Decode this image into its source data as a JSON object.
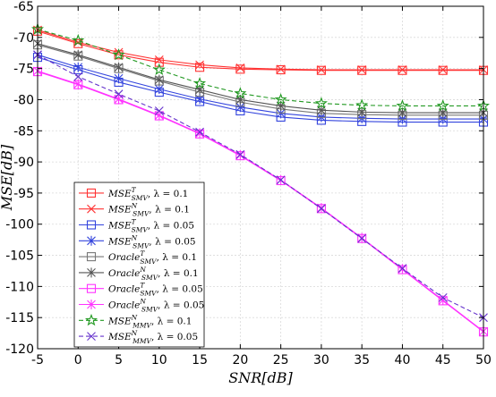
{
  "chart_data": {
    "type": "line",
    "title": "",
    "xlabel": "SNR[dB]",
    "ylabel": "MSE[dB]",
    "xlim": [
      -5,
      50
    ],
    "ylim": [
      -120,
      -65
    ],
    "xticks": [
      -5,
      0,
      5,
      10,
      15,
      20,
      25,
      30,
      35,
      40,
      45,
      50
    ],
    "yticks": [
      -65,
      -70,
      -75,
      -80,
      -85,
      -90,
      -95,
      -100,
      -105,
      -110,
      -115,
      -120
    ],
    "grid": true,
    "legend_position": "bottom-left",
    "x": [
      -5,
      0,
      5,
      10,
      15,
      20,
      25,
      30,
      35,
      40,
      45,
      50
    ],
    "series": [
      {
        "name": "MSE^T_SMV, λ = 0.1",
        "color": "#ff3333",
        "marker": "square",
        "dash": "solid",
        "values": [
          -69.0,
          -71.0,
          -72.8,
          -74.0,
          -74.8,
          -75.1,
          -75.2,
          -75.3,
          -75.3,
          -75.3,
          -75.3,
          -75.3
        ]
      },
      {
        "name": "MSE^N_SMV, λ = 0.1",
        "color": "#ff3333",
        "marker": "x",
        "dash": "solid",
        "values": [
          -68.8,
          -70.8,
          -72.4,
          -73.6,
          -74.4,
          -74.9,
          -75.1,
          -75.2,
          -75.2,
          -75.2,
          -75.2,
          -75.2
        ]
      },
      {
        "name": "MSE^T_SMV, λ = 0.05",
        "color": "#3344dd",
        "marker": "square",
        "dash": "solid",
        "values": [
          -73.2,
          -75.2,
          -77.2,
          -78.8,
          -80.3,
          -81.8,
          -82.8,
          -83.3,
          -83.5,
          -83.6,
          -83.6,
          -83.6
        ]
      },
      {
        "name": "MSE^N_SMV, λ = 0.05",
        "color": "#3344dd",
        "marker": "asterisk",
        "dash": "solid",
        "values": [
          -72.8,
          -74.8,
          -76.6,
          -78.3,
          -79.9,
          -81.2,
          -82.2,
          -82.8,
          -83.0,
          -83.1,
          -83.1,
          -83.1
        ]
      },
      {
        "name": "Oracle^T_SMV, λ = 0.1",
        "color": "#777777",
        "marker": "square",
        "dash": "solid",
        "values": [
          -71.2,
          -73.0,
          -75.0,
          -77.0,
          -78.8,
          -80.4,
          -81.5,
          -82.2,
          -82.4,
          -82.5,
          -82.5,
          -82.5
        ]
      },
      {
        "name": "Oracle^N_SMV, λ = 0.1",
        "color": "#555555",
        "marker": "asterisk",
        "dash": "solid",
        "values": [
          -71.0,
          -72.8,
          -74.8,
          -76.8,
          -78.4,
          -80.0,
          -81.0,
          -81.7,
          -82.0,
          -82.1,
          -82.1,
          -82.1
        ]
      },
      {
        "name": "Oracle^T_SMV, λ = 0.05",
        "color": "#ff33ff",
        "marker": "square",
        "dash": "solid",
        "values": [
          -75.5,
          -77.6,
          -80.0,
          -82.6,
          -85.5,
          -89.0,
          -93.0,
          -97.5,
          -102.3,
          -107.3,
          -112.3,
          -117.3
        ]
      },
      {
        "name": "Oracle^N_SMV, λ = 0.05",
        "color": "#ff33ff",
        "marker": "asterisk",
        "dash": "solid",
        "values": [
          -75.4,
          -77.5,
          -79.9,
          -82.5,
          -85.4,
          -88.9,
          -92.9,
          -97.4,
          -102.2,
          -107.2,
          -112.2,
          -117.2
        ]
      },
      {
        "name": "MSE^N_MMV, λ = 0.1",
        "color": "#229922",
        "marker": "star",
        "dash": "dashed",
        "values": [
          -68.7,
          -70.5,
          -72.8,
          -75.2,
          -77.4,
          -79.0,
          -80.0,
          -80.6,
          -80.9,
          -81.0,
          -81.0,
          -81.0
        ]
      },
      {
        "name": "MSE^N_MMV, λ = 0.05",
        "color": "#6633cc",
        "marker": "x",
        "dash": "dashed",
        "values": [
          -72.8,
          -76.3,
          -79.1,
          -81.8,
          -85.2,
          -88.8,
          -92.9,
          -97.5,
          -102.3,
          -107.1,
          -111.8,
          -115.0
        ]
      }
    ]
  },
  "legend": [
    {
      "main": "MSE",
      "sup": "T",
      "sub": "SMV",
      "suffix": ", λ = 0.1"
    },
    {
      "main": "MSE",
      "sup": "N",
      "sub": "SMV",
      "suffix": ", λ = 0.1"
    },
    {
      "main": "MSE",
      "sup": "T",
      "sub": "SMV",
      "suffix": ", λ = 0.05"
    },
    {
      "main": "MSE",
      "sup": "N",
      "sub": "SMV",
      "suffix": ", λ = 0.05"
    },
    {
      "main": "Oracle",
      "sup": "T",
      "sub": "SMV",
      "suffix": ", λ = 0.1"
    },
    {
      "main": "Oracle",
      "sup": "N",
      "sub": "SMV",
      "suffix": ", λ = 0.1"
    },
    {
      "main": "Oracle",
      "sup": "T",
      "sub": "SMV",
      "suffix": ", λ = 0.05"
    },
    {
      "main": "Oracle",
      "sup": "N",
      "sub": "SMV",
      "suffix": ", λ = 0.05"
    },
    {
      "main": "MSE",
      "sup": "N",
      "sub": "MMV",
      "suffix": ", λ = 0.1"
    },
    {
      "main": "MSE",
      "sup": "N",
      "sub": "MMV",
      "suffix": ", λ = 0.05"
    }
  ]
}
